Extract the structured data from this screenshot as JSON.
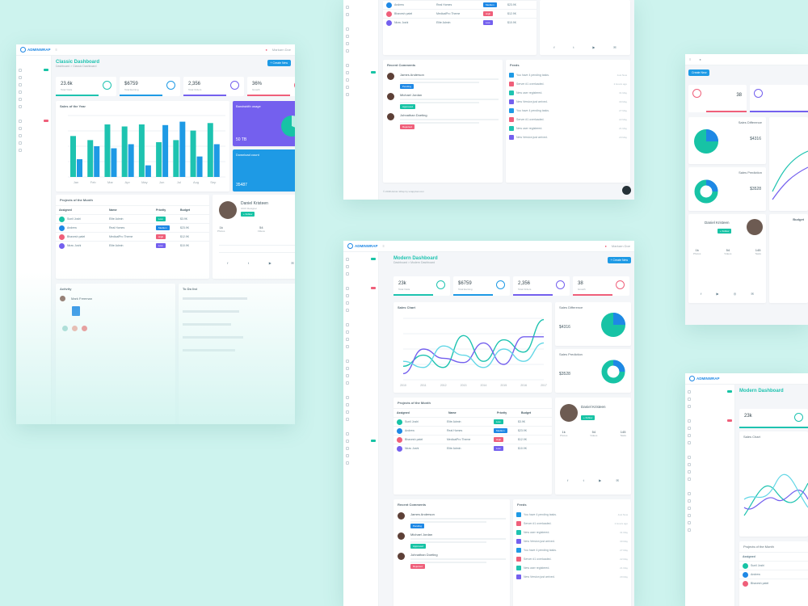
{
  "brand": {
    "name": "ADMINWRAP",
    "user": "Markarn Doe"
  },
  "colors": {
    "teal": "#1ec3b0",
    "blue": "#1e9ae5",
    "purple": "#7460ee",
    "pink": "#ef5f7a",
    "bg": "#cdf3ee"
  },
  "dash1": {
    "title": "Classic Dashboard",
    "crumb": "Dashboard > Classic Dashboard",
    "create_btn": "+ Create New",
    "stats": [
      {
        "value": "23.6k",
        "label": "Total Visits",
        "color": "#1ec3b0"
      },
      {
        "value": "$6759",
        "label": "Total Earning",
        "color": "#1e9ae5"
      },
      {
        "value": "2,356",
        "label": "Total Orders",
        "color": "#7460ee"
      },
      {
        "value": "36%",
        "label": "Growth",
        "color": "#ef5f7a"
      }
    ],
    "chart_title": "Sales of the Year",
    "chart_data": {
      "type": "bar",
      "categories": [
        "Jan",
        "Feb",
        "Mar",
        "Apr",
        "May",
        "Jun",
        "Jul",
        "Aug",
        "Sep"
      ],
      "series": [
        {
          "values": [
            60,
            54,
            77,
            74,
            77,
            51,
            54,
            68,
            79
          ],
          "color": "#1ec3b0"
        },
        {
          "values": [
            26,
            45,
            42,
            48,
            17,
            76,
            81,
            30,
            48
          ],
          "color": "#1e9ae5"
        }
      ],
      "ylim": [
        0,
        90
      ]
    },
    "bandwidth": {
      "title": "Bandwidth usage",
      "value": "50 TB"
    },
    "download": {
      "title": "Download count",
      "value": "35487"
    },
    "projects": {
      "title": "Projects of the Month",
      "headers": [
        "Assigned",
        "Name",
        "Priority",
        "Budget"
      ],
      "rows": [
        {
          "name": "Sunil Joshi",
          "project": "Elite Admin",
          "priority": "Low",
          "budget": "$3.9K",
          "color": "#17c3a5"
        },
        {
          "name": "Andrew",
          "project": "Real Homes",
          "priority": "Medium",
          "budget": "$23.9K",
          "color": "#1e88e5"
        },
        {
          "name": "Bhavesh patel",
          "project": "MedicalPro Theme",
          "priority": "High",
          "budget": "$12.9K",
          "color": "#ef5f7a"
        },
        {
          "name": "Nirav Joshi",
          "project": "Elite Admin",
          "priority": "Low",
          "budget": "$10.9K",
          "color": "#7460ee"
        }
      ]
    },
    "profile": {
      "name": "Daniel Kristeen",
      "role": "UIUX Designer",
      "btn": "+ Follow",
      "stats": [
        {
          "v": "1k",
          "l": "Photos"
        },
        {
          "v": "54",
          "l": "Videos"
        },
        {
          "v": "145",
          "l": "Tasks"
        }
      ]
    },
    "activity": {
      "title": "Activity",
      "user": "Mark Freeman"
    },
    "todo": {
      "title": "To Do list"
    }
  },
  "dash2": {
    "title": "Modern Dashboard",
    "crumb": "Dashboard > Modern Dashboard",
    "create_btn": "+ Create New",
    "stats": [
      {
        "value": "23k",
        "label": "Total Visits",
        "color": "#1ec3b0"
      },
      {
        "value": "$6759",
        "label": "Total Earning",
        "color": "#1e9ae5"
      },
      {
        "value": "2,356",
        "label": "Total Orders",
        "color": "#7460ee"
      },
      {
        "value": "38",
        "label": "Growth",
        "color": "#ef5f7a"
      }
    ],
    "chart_title": "Sales Chart",
    "chart_data": {
      "type": "line",
      "x": [
        "2010",
        "2011",
        "2012",
        "2013",
        "2014",
        "2015",
        "2016",
        "2017"
      ],
      "series": [
        {
          "values": [
            22,
            40,
            20,
            72,
            30,
            65,
            45,
            98
          ],
          "color": "#1ec3b0"
        },
        {
          "values": [
            10,
            50,
            35,
            28,
            60,
            25,
            70,
            70
          ],
          "color": "#7460ee"
        },
        {
          "values": [
            30,
            20,
            55,
            40,
            20,
            50,
            30,
            60
          ],
          "color": "#63d7e6"
        }
      ]
    },
    "sales_diff": {
      "title": "Sales Difference",
      "value": "$4316"
    },
    "sales_pred": {
      "title": "Sales Prediction",
      "value": "$3528"
    },
    "projects_title": "Projects of the Month",
    "profile_name": "Daniel Kristeen",
    "comments": {
      "title": "Recent Comments",
      "items": [
        {
          "name": "James Anderson",
          "tag": "Pending",
          "color": "#1e88e5"
        },
        {
          "name": "Michael Jordan",
          "tag": "Approved",
          "color": "#17c3a5"
        },
        {
          "name": "Johnathan Doeting",
          "tag": "Rejected",
          "color": "#ef5f7a"
        }
      ]
    },
    "feeds": {
      "title": "Feeds",
      "items": [
        {
          "text": "You have 4 pending tasks.",
          "time": "Just Now",
          "color": "#1e9ae5"
        },
        {
          "text": "Server #1 overloaded.",
          "time": "2 Hours ago",
          "color": "#ef5f7a"
        },
        {
          "text": "New user registered.",
          "time": "31 May",
          "color": "#1ec3b0"
        },
        {
          "text": "New Version just arrived.",
          "time": "30 May",
          "color": "#7460ee"
        },
        {
          "text": "You have 4 pending tasks.",
          "time": "27 May",
          "color": "#1e9ae5"
        },
        {
          "text": "Server #1 overloaded.",
          "time": "22 May",
          "color": "#ef5f7a"
        },
        {
          "text": "New user registered.",
          "time": "21 May",
          "color": "#1ec3b0"
        },
        {
          "text": "New Version just arrived.",
          "time": "20 May",
          "color": "#7460ee"
        }
      ]
    },
    "footer": "© 2018 Admin Wrap by wrappixel.com"
  },
  "dash3": {
    "create_btn": "Create New",
    "stats": [
      {
        "value": "38"
      },
      {
        "value": "$4316"
      },
      {
        "value": "$3528"
      }
    ],
    "titles": [
      "Sales Difference",
      "Sales Prediction"
    ],
    "profile": "Daniel Kristeen",
    "budget": "Budget"
  },
  "dash4": {
    "title": "Modern Dashboard",
    "stat": "23k",
    "chart": "Sales Chart",
    "projects": "Projects of the Month",
    "assigned": "Assigned",
    "names": [
      "Sunil Joshi",
      "Andrew",
      "Bhavesh patel"
    ]
  }
}
